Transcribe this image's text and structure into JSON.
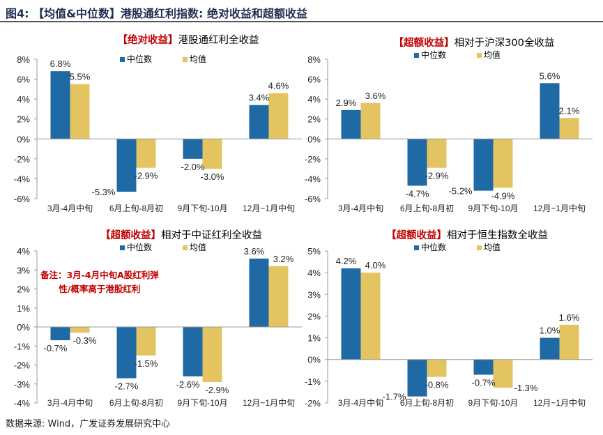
{
  "figure_title": "图4: 【均值&中位数】港股通红利指数: 绝对收益和超额收益",
  "source": "数据来源:  Wind，广发证券发展研究中心",
  "colors": {
    "median": "#1f6aa5",
    "mean": "#e4c461",
    "title_red": "#c00000"
  },
  "chart_data": [
    {
      "type": "bar",
      "title_bracket": "【绝对收益】",
      "title_rest": "港股通红利全收益",
      "categories": [
        "3月-4月中旬",
        "6月上旬-8月初",
        "9月下旬-10月",
        "12月~1月中旬"
      ],
      "series": [
        {
          "name": "中位数",
          "values": [
            6.8,
            -5.3,
            -2.0,
            3.4
          ],
          "labels": [
            "6.8%",
            "-5.3%",
            "-2.0%",
            "3.4%"
          ]
        },
        {
          "name": "均值",
          "values": [
            5.5,
            -2.9,
            -3.0,
            4.6
          ],
          "labels": [
            "5.5%",
            "-2.9%",
            "-3.0%",
            "4.6%"
          ]
        }
      ],
      "ylim": [
        -6,
        8
      ],
      "yticks": [
        "8%",
        "6%",
        "4%",
        "2%",
        "0%",
        "-2%",
        "-4%",
        "-6%"
      ],
      "ytick_values": [
        8,
        6,
        4,
        2,
        0,
        -2,
        -4,
        -6
      ]
    },
    {
      "type": "bar",
      "title_bracket": "【超额收益】",
      "title_rest": "相对于沪深300全收益",
      "categories": [
        "3月-4月中旬",
        "6月上旬-8月初",
        "9月下旬-10月",
        "12月~1月中旬"
      ],
      "series": [
        {
          "name": "中位数",
          "values": [
            2.9,
            -4.7,
            -5.2,
            5.6
          ],
          "labels": [
            "2.9%",
            "-4.7%",
            "-5.2%",
            "5.6%"
          ]
        },
        {
          "name": "均值",
          "values": [
            3.6,
            -2.9,
            -4.9,
            2.1
          ],
          "labels": [
            "3.6%",
            "-2.9%",
            "-4.9%",
            "2.1%"
          ]
        }
      ],
      "ylim": [
        -6,
        8
      ],
      "yticks": [
        "8%",
        "6%",
        "4%",
        "2%",
        "0%",
        "-2%",
        "-4%",
        "-6%"
      ],
      "ytick_values": [
        8,
        6,
        4,
        2,
        0,
        -2,
        -4,
        -6
      ]
    },
    {
      "type": "bar",
      "title_bracket": "【超额收益】",
      "title_rest": "相对于中证红利全收益",
      "categories": [
        "3月-4月中旬",
        "6月上旬-8月初",
        "9月下旬-10月",
        "12月~1月中旬"
      ],
      "series": [
        {
          "name": "中位数",
          "values": [
            -0.7,
            -2.7,
            -2.6,
            3.6
          ],
          "labels": [
            "-0.7%",
            "-2.7%",
            "-2.6%",
            "3.6%"
          ]
        },
        {
          "name": "均值",
          "values": [
            -0.3,
            -1.5,
            -2.9,
            3.2
          ],
          "labels": [
            "-0.3%",
            "-1.5%",
            "-2.9%",
            "3.2%"
          ]
        }
      ],
      "ylim": [
        -4,
        4
      ],
      "yticks": [
        "4%",
        "3%",
        "2%",
        "1%",
        "0%",
        "-1%",
        "-2%",
        "-3%",
        "-4%"
      ],
      "ytick_values": [
        4,
        3,
        2,
        1,
        0,
        -1,
        -2,
        -3,
        -4
      ],
      "annotation": [
        "备注：3月-4月中旬A股红利弹",
        "性/概率高于港股红利"
      ]
    },
    {
      "type": "bar",
      "title_bracket": "【超额收益】",
      "title_rest": "相对于恒生指数全收益",
      "categories": [
        "3月-4月中旬",
        "6月上旬-8月初",
        "9月下旬-10月",
        "12月~1月中旬"
      ],
      "series": [
        {
          "name": "中位数",
          "values": [
            4.2,
            -1.7,
            -0.7,
            1.0
          ],
          "labels": [
            "4.2%",
            "-1.7%",
            "-0.7%",
            "1.0%"
          ]
        },
        {
          "name": "均值",
          "values": [
            4.0,
            -0.8,
            -1.3,
            1.6
          ],
          "labels": [
            "4.0%",
            "-0.8%",
            "-1.3%",
            "1.6%"
          ]
        }
      ],
      "ylim": [
        -2,
        5
      ],
      "yticks": [
        "5%",
        "4%",
        "3%",
        "2%",
        "1%",
        "0%",
        "-1%",
        "-2%"
      ],
      "ytick_values": [
        5,
        4,
        3,
        2,
        1,
        0,
        -1,
        -2
      ]
    }
  ]
}
